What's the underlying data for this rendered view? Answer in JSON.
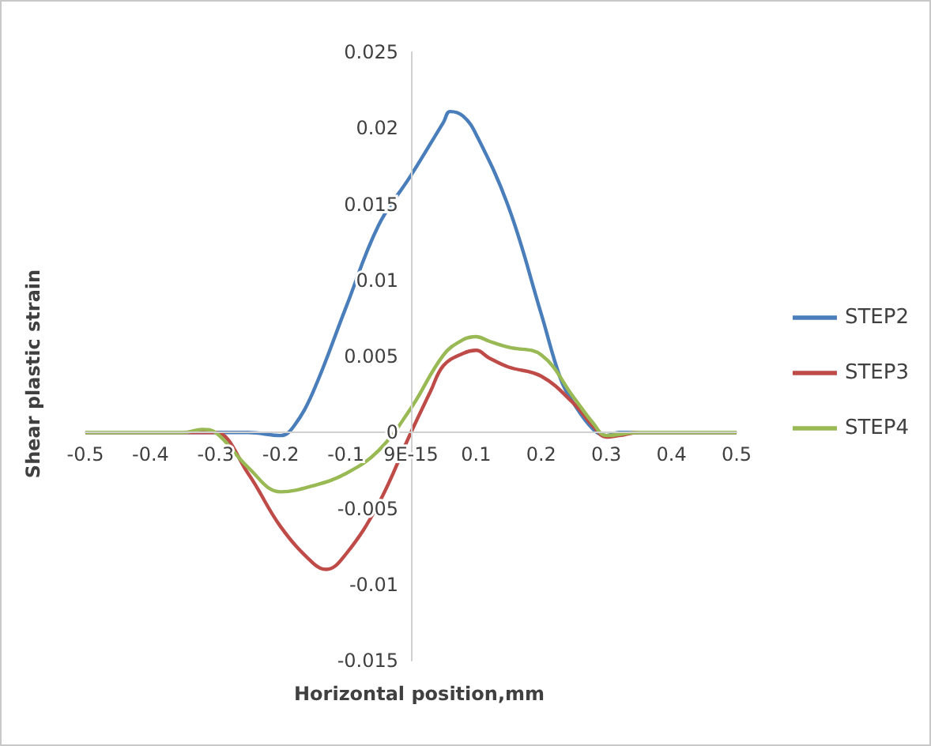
{
  "chart_data": {
    "type": "line",
    "xlabel": "Horizontal position,mm",
    "ylabel": "Shear plastic strain",
    "xlim": [
      -0.5,
      0.5
    ],
    "xticks": [
      -0.5,
      -0.4,
      -0.3,
      -0.2,
      -0.1,
      {
        "value": 0,
        "label": "9E-15"
      },
      0.1,
      0.2,
      0.3,
      0.4,
      0.5
    ],
    "ylim": [
      -0.015,
      0.025
    ],
    "yticks": [
      -0.015,
      -0.01,
      -0.005,
      0,
      0.005,
      0.01,
      0.015,
      0.02,
      0.025
    ],
    "grid": false,
    "legend": "right",
    "marker": "none",
    "line_style": "solid",
    "series": [
      {
        "name": "STEP2",
        "color": "#4a7ebb",
        "x": [
          -0.5,
          -0.4,
          -0.3,
          -0.25,
          -0.2,
          -0.18,
          -0.15,
          -0.1,
          -0.05,
          0,
          0.05,
          0.06,
          0.08,
          0.1,
          0.15,
          0.2,
          0.23,
          0.25,
          0.28,
          0.3,
          0.32,
          0.4,
          0.5
        ],
        "values": [
          0,
          0,
          0,
          0,
          -0.0002,
          0.0004,
          0.0027,
          0.0082,
          0.0136,
          0.0169,
          0.0204,
          0.0211,
          0.0208,
          0.0196,
          0.0148,
          0.0078,
          0.0035,
          0.0019,
          0.0002,
          -0.0002,
          0,
          0,
          0
        ]
      },
      {
        "name": "STEP3",
        "color": "#be4b48",
        "x": [
          -0.5,
          -0.4,
          -0.32,
          -0.3,
          -0.25,
          -0.2,
          -0.15,
          -0.13,
          -0.1,
          -0.05,
          0,
          0.03,
          0.05,
          0.08,
          0.1,
          0.12,
          0.15,
          0.2,
          0.25,
          0.28,
          0.3,
          0.32,
          0.35,
          0.4,
          0.5
        ],
        "values": [
          0,
          0,
          0,
          0,
          -0.0027,
          -0.0062,
          -0.0086,
          -0.009,
          -0.008,
          -0.0047,
          0,
          0.0027,
          0.0044,
          0.0052,
          0.0054,
          0.0049,
          0.0043,
          0.0037,
          0.0019,
          0.0004,
          -0.0003,
          -0.0002,
          0,
          0,
          0
        ]
      },
      {
        "name": "STEP4",
        "color": "#98b954",
        "x": [
          -0.5,
          -0.4,
          -0.35,
          -0.32,
          -0.3,
          -0.25,
          -0.2,
          -0.15,
          -0.1,
          -0.05,
          0,
          0.05,
          0.08,
          0.1,
          0.12,
          0.15,
          0.2,
          0.25,
          0.28,
          0.3,
          0.35,
          0.4,
          0.5
        ],
        "values": [
          0,
          0,
          0,
          0.0002,
          0,
          -0.0023,
          -0.0039,
          -0.0035,
          -0.0027,
          -0.0012,
          0.0016,
          0.0051,
          0.0061,
          0.0063,
          0.006,
          0.0056,
          0.0051,
          0.0023,
          0.0006,
          -0.0002,
          0,
          0,
          0
        ]
      }
    ]
  }
}
